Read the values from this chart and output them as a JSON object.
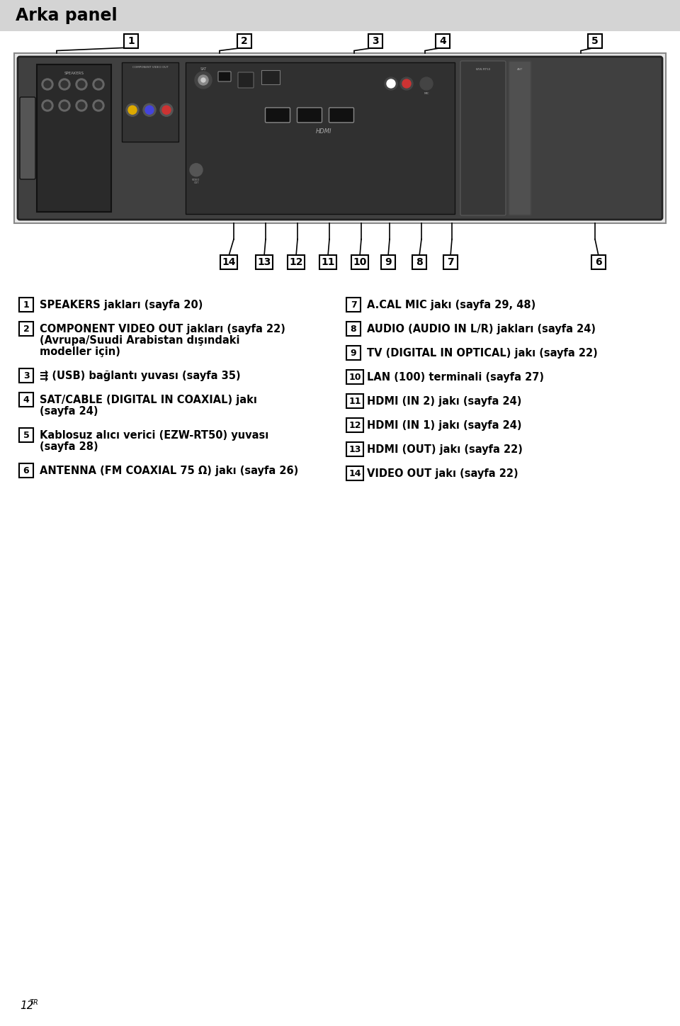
{
  "title": "Arka panel",
  "title_bg": "#d4d4d4",
  "page_bg": "#ffffff",
  "title_fontsize": 17,
  "footer_text": "12",
  "footer_superscript": "TR",
  "numbered_items_left": [
    {
      "num": "1",
      "lines": [
        "SPEAKERS jakları (sayfa 20)"
      ]
    },
    {
      "num": "2",
      "lines": [
        "COMPONENT VIDEO OUT jakları (sayfa 22)",
        "(Avrupa/Suudi Arabistan dışındaki",
        "modeller için)"
      ]
    },
    {
      "num": "3",
      "lines": [
        "⇶ (USB) bağlantı yuvası (sayfa 35)"
      ]
    },
    {
      "num": "4",
      "lines": [
        "SAT/CABLE (DIGITAL IN COAXIAL) jakı",
        "(sayfa 24)"
      ]
    },
    {
      "num": "5",
      "lines": [
        "Kablosuz alıcı verici (EZW-RT50) yuvası",
        "(sayfa 28)"
      ]
    },
    {
      "num": "6",
      "lines": [
        "ANTENNA (FM COAXIAL 75 Ω) jakı (sayfa 26)"
      ]
    }
  ],
  "numbered_items_right": [
    {
      "num": "7",
      "lines": [
        "A.CAL MIC jakı (sayfa 29, 48)"
      ]
    },
    {
      "num": "8",
      "lines": [
        "AUDIO (AUDIO IN L/R) jakları (sayfa 24)"
      ]
    },
    {
      "num": "9",
      "lines": [
        "TV (DIGITAL IN OPTICAL) jakı (sayfa 22)"
      ]
    },
    {
      "num": "10",
      "lines": [
        "LAN (100) terminali (sayfa 27)"
      ]
    },
    {
      "num": "11",
      "lines": [
        "HDMI (IN 2) jakı (sayfa 24)"
      ]
    },
    {
      "num": "12",
      "lines": [
        "HDMI (IN 1) jakı (sayfa 24)"
      ]
    },
    {
      "num": "13",
      "lines": [
        "HDMI (OUT) jakı (sayfa 22)"
      ]
    },
    {
      "num": "14",
      "lines": [
        "VIDEO OUT jakı (sayfa 22)"
      ]
    }
  ],
  "text_color": "#000000",
  "text_fontsize": 10.5,
  "callout_fontsize": 10,
  "item_num_fontsize": 9
}
